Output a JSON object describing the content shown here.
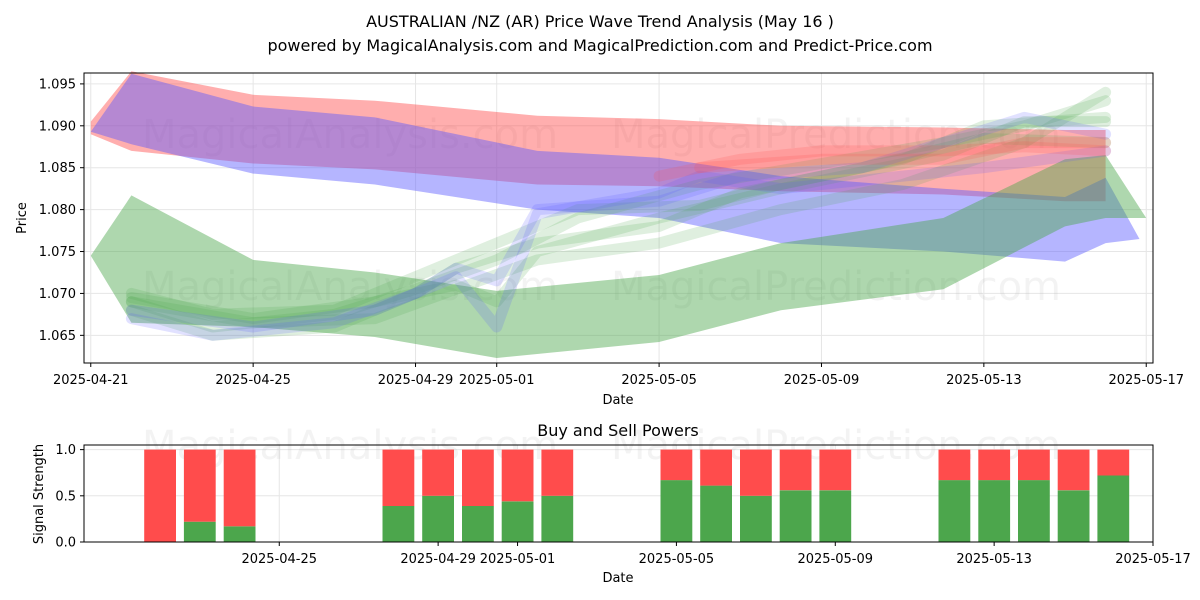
{
  "title": {
    "line1": "AUSTRALIAN /NZ (AR) Price Wave Trend Analysis (May 16 )",
    "line2": "powered by MagicalAnalysis.com and MagicalPrediction.com and Predict-Price.com"
  },
  "watermarks": [
    "MagicalAnalysis.com",
    "MagicalPrediction.com"
  ],
  "colors": {
    "red": "#ff4c4c",
    "blue": "#5a5aff",
    "green": "#4ca64c",
    "grid": "#e6e6e6"
  },
  "chart_data": [
    {
      "type": "area",
      "title": "",
      "xlabel": "Date",
      "ylabel": "Price",
      "xlim": [
        "2025-04-20T20:00",
        "2025-05-17T04:00"
      ],
      "ylim": [
        1.0617,
        1.0963
      ],
      "x_ticks": [
        "2025-04-21",
        "2025-04-25",
        "2025-04-29",
        "2025-05-01",
        "2025-05-05",
        "2025-05-09",
        "2025-05-13",
        "2025-05-17"
      ],
      "y_ticks": [
        1.065,
        1.07,
        1.075,
        1.08,
        1.085,
        1.09,
        1.095
      ],
      "grid": true,
      "series": [
        {
          "color": "red",
          "points": [
            {
              "x": "2025-04-21",
              "lo": 1.089,
              "hi": 1.0905
            },
            {
              "x": "2025-04-22",
              "lo": 1.087,
              "hi": 1.0965
            },
            {
              "x": "2025-04-25",
              "lo": 1.0855,
              "hi": 1.0937
            },
            {
              "x": "2025-04-28",
              "lo": 1.0848,
              "hi": 1.093
            },
            {
              "x": "2025-05-02",
              "lo": 1.083,
              "hi": 1.0912
            },
            {
              "x": "2025-05-05",
              "lo": 1.0828,
              "hi": 1.0908
            },
            {
              "x": "2025-05-08",
              "lo": 1.0822,
              "hi": 1.09
            },
            {
              "x": "2025-05-12",
              "lo": 1.0818,
              "hi": 1.0898
            },
            {
              "x": "2025-05-15",
              "lo": 1.081,
              "hi": 1.0895
            },
            {
              "x": "2025-05-16",
              "lo": 1.081,
              "hi": 1.0895
            }
          ]
        },
        {
          "color": "blue",
          "points": [
            {
              "x": "2025-04-21",
              "lo": 1.0893,
              "hi": 1.0893
            },
            {
              "x": "2025-04-22",
              "lo": 1.0878,
              "hi": 1.0962
            },
            {
              "x": "2025-04-25",
              "lo": 1.0843,
              "hi": 1.0923
            },
            {
              "x": "2025-04-28",
              "lo": 1.083,
              "hi": 1.091
            },
            {
              "x": "2025-05-02",
              "lo": 1.08,
              "hi": 1.087
            },
            {
              "x": "2025-05-05",
              "lo": 1.079,
              "hi": 1.0862
            },
            {
              "x": "2025-05-08",
              "lo": 1.076,
              "hi": 1.084
            },
            {
              "x": "2025-05-12",
              "lo": 1.075,
              "hi": 1.0825
            },
            {
              "x": "2025-05-15",
              "lo": 1.0738,
              "hi": 1.0815
            },
            {
              "x": "2025-05-16",
              "lo": 1.076,
              "hi": 1.0838
            },
            {
              "x": "2025-05-16T20:00",
              "lo": 1.0765,
              "hi": 1.0765
            }
          ]
        },
        {
          "color": "green",
          "points": [
            {
              "x": "2025-04-21",
              "lo": 1.0745,
              "hi": 1.0745
            },
            {
              "x": "2025-04-22",
              "lo": 1.0665,
              "hi": 1.0817
            },
            {
              "x": "2025-04-25",
              "lo": 1.066,
              "hi": 1.074
            },
            {
              "x": "2025-04-28",
              "lo": 1.0648,
              "hi": 1.0725
            },
            {
              "x": "2025-05-01",
              "lo": 1.0623,
              "hi": 1.0703
            },
            {
              "x": "2025-05-05",
              "lo": 1.0642,
              "hi": 1.0722
            },
            {
              "x": "2025-05-08",
              "lo": 1.068,
              "hi": 1.076
            },
            {
              "x": "2025-05-12",
              "lo": 1.0705,
              "hi": 1.079
            },
            {
              "x": "2025-05-15",
              "lo": 1.078,
              "hi": 1.086
            },
            {
              "x": "2025-05-16",
              "lo": 1.079,
              "hi": 1.0865
            },
            {
              "x": "2025-05-17",
              "lo": 1.079,
              "hi": 1.079
            }
          ]
        }
      ],
      "forecast_waves": [
        {
          "color": "green",
          "points": [
            [
              "2025-04-22",
              1.069
            ],
            [
              "2025-04-24",
              1.066
            ],
            [
              "2025-04-27",
              1.0675
            ],
            [
              "2025-04-29",
              1.0705
            ],
            [
              "2025-05-01",
              1.074
            ],
            [
              "2025-05-03",
              1.079
            ],
            [
              "2025-05-06",
              1.083
            ],
            [
              "2025-05-09",
              1.0855
            ],
            [
              "2025-05-12",
              1.088
            ],
            [
              "2025-05-14",
              1.09
            ],
            [
              "2025-05-16",
              1.093
            ]
          ]
        },
        {
          "color": "green",
          "points": [
            [
              "2025-04-22",
              1.07
            ],
            [
              "2025-04-24",
              1.0675
            ],
            [
              "2025-04-27",
              1.068
            ],
            [
              "2025-04-29",
              1.072
            ],
            [
              "2025-05-01",
              1.076
            ],
            [
              "2025-05-03",
              1.08
            ],
            [
              "2025-05-06",
              1.0805
            ],
            [
              "2025-05-08",
              1.083
            ],
            [
              "2025-05-11",
              1.086
            ],
            [
              "2025-05-13",
              1.09
            ],
            [
              "2025-05-16",
              1.091
            ]
          ]
        },
        {
          "color": "green",
          "points": [
            [
              "2025-04-22",
              1.069
            ],
            [
              "2025-04-25",
              1.0665
            ],
            [
              "2025-04-28",
              1.067
            ],
            [
              "2025-04-30",
              1.0705
            ],
            [
              "2025-05-02",
              1.074
            ],
            [
              "2025-05-05",
              1.076
            ],
            [
              "2025-05-08",
              1.08
            ],
            [
              "2025-05-11",
              1.083
            ],
            [
              "2025-05-14",
              1.088
            ],
            [
              "2025-05-16",
              1.094
            ]
          ]
        },
        {
          "color": "green",
          "points": [
            [
              "2025-04-22",
              1.068
            ],
            [
              "2025-04-24",
              1.065
            ],
            [
              "2025-04-27",
              1.066
            ],
            [
              "2025-04-29",
              1.07
            ],
            [
              "2025-04-30",
              1.073
            ],
            [
              "2025-05-02",
              1.076
            ],
            [
              "2025-05-05",
              1.078
            ],
            [
              "2025-05-07",
              1.082
            ],
            [
              "2025-05-10",
              1.085
            ],
            [
              "2025-05-13",
              1.0885
            ],
            [
              "2025-05-16",
              1.088
            ]
          ]
        },
        {
          "color": "green",
          "points": [
            [
              "2025-04-22",
              1.0695
            ],
            [
              "2025-04-25",
              1.067
            ],
            [
              "2025-04-28",
              1.069
            ],
            [
              "2025-04-30",
              1.071
            ],
            [
              "2025-05-01",
              1.069
            ],
            [
              "2025-05-02",
              1.075
            ],
            [
              "2025-05-05",
              1.079
            ],
            [
              "2025-05-08",
              1.0825
            ],
            [
              "2025-05-12",
              1.0865
            ],
            [
              "2025-05-14",
              1.0905
            ],
            [
              "2025-05-16",
              1.0905
            ]
          ]
        },
        {
          "color": "blue",
          "points": [
            [
              "2025-04-22",
              1.067
            ],
            [
              "2025-04-24",
              1.065
            ],
            [
              "2025-04-27",
              1.0665
            ],
            [
              "2025-04-29",
              1.07
            ],
            [
              "2025-04-30",
              1.073
            ],
            [
              "2025-05-01",
              1.0715
            ],
            [
              "2025-05-02",
              1.08
            ],
            [
              "2025-05-05",
              1.081
            ],
            [
              "2025-05-07",
              1.084
            ],
            [
              "2025-05-10",
              1.085
            ],
            [
              "2025-05-12",
              1.088
            ],
            [
              "2025-05-14",
              1.091
            ],
            [
              "2025-05-16",
              1.089
            ]
          ]
        },
        {
          "color": "blue",
          "points": [
            [
              "2025-04-22",
              1.068
            ],
            [
              "2025-04-25",
              1.066
            ],
            [
              "2025-04-28",
              1.068
            ],
            [
              "2025-04-30",
              1.072
            ],
            [
              "2025-05-01",
              1.066
            ],
            [
              "2025-05-02",
              1.0795
            ],
            [
              "2025-05-05",
              1.082
            ],
            [
              "2025-05-06",
              1.084
            ],
            [
              "2025-05-08",
              1.0825
            ],
            [
              "2025-05-11",
              1.084
            ],
            [
              "2025-05-13",
              1.085
            ],
            [
              "2025-05-16",
              1.087
            ]
          ]
        },
        {
          "color": "red",
          "points": [
            [
              "2025-05-05",
              1.084
            ],
            [
              "2025-05-07",
              1.086
            ],
            [
              "2025-05-09",
              1.087
            ],
            [
              "2025-05-12",
              1.087
            ],
            [
              "2025-05-14",
              1.0875
            ],
            [
              "2025-05-16",
              1.087
            ]
          ]
        },
        {
          "color": "red",
          "points": [
            [
              "2025-05-06",
              1.085
            ],
            [
              "2025-05-09",
              1.086
            ],
            [
              "2025-05-12",
              1.086
            ],
            [
              "2025-05-14",
              1.088
            ],
            [
              "2025-05-16",
              1.088
            ]
          ]
        }
      ]
    },
    {
      "type": "bar",
      "title": "Buy and Sell Powers",
      "xlabel": "Date",
      "ylabel": "Signal Strength",
      "xlim": [
        "2025-04-20T02:00",
        "2025-05-17T00:00"
      ],
      "ylim": [
        0,
        1.05
      ],
      "x_ticks": [
        "2025-04-25",
        "2025-04-29",
        "2025-05-01",
        "2025-05-05",
        "2025-05-09",
        "2025-05-13",
        "2025-05-17"
      ],
      "y_ticks": [
        0.0,
        0.5,
        1.0
      ],
      "grid": true,
      "categories": [
        "2025-04-22",
        "2025-04-23",
        "2025-04-24",
        "2025-04-28",
        "2025-04-29",
        "2025-04-30",
        "2025-05-01",
        "2025-05-02",
        "2025-05-05",
        "2025-05-06",
        "2025-05-07",
        "2025-05-08",
        "2025-05-09",
        "2025-05-12",
        "2025-05-13",
        "2025-05-14",
        "2025-05-15",
        "2025-05-16"
      ],
      "series": [
        {
          "color": "green",
          "values": [
            0.0,
            0.22,
            0.17,
            0.39,
            0.5,
            0.39,
            0.44,
            0.5,
            0.67,
            0.61,
            0.5,
            0.56,
            0.56,
            0.67,
            0.67,
            0.67,
            0.56,
            0.72
          ]
        },
        {
          "color": "red",
          "values": [
            1.0,
            0.78,
            0.83,
            0.61,
            0.5,
            0.61,
            0.56,
            0.5,
            0.33,
            0.39,
            0.5,
            0.44,
            0.44,
            0.33,
            0.33,
            0.33,
            0.44,
            0.28
          ]
        }
      ]
    }
  ]
}
